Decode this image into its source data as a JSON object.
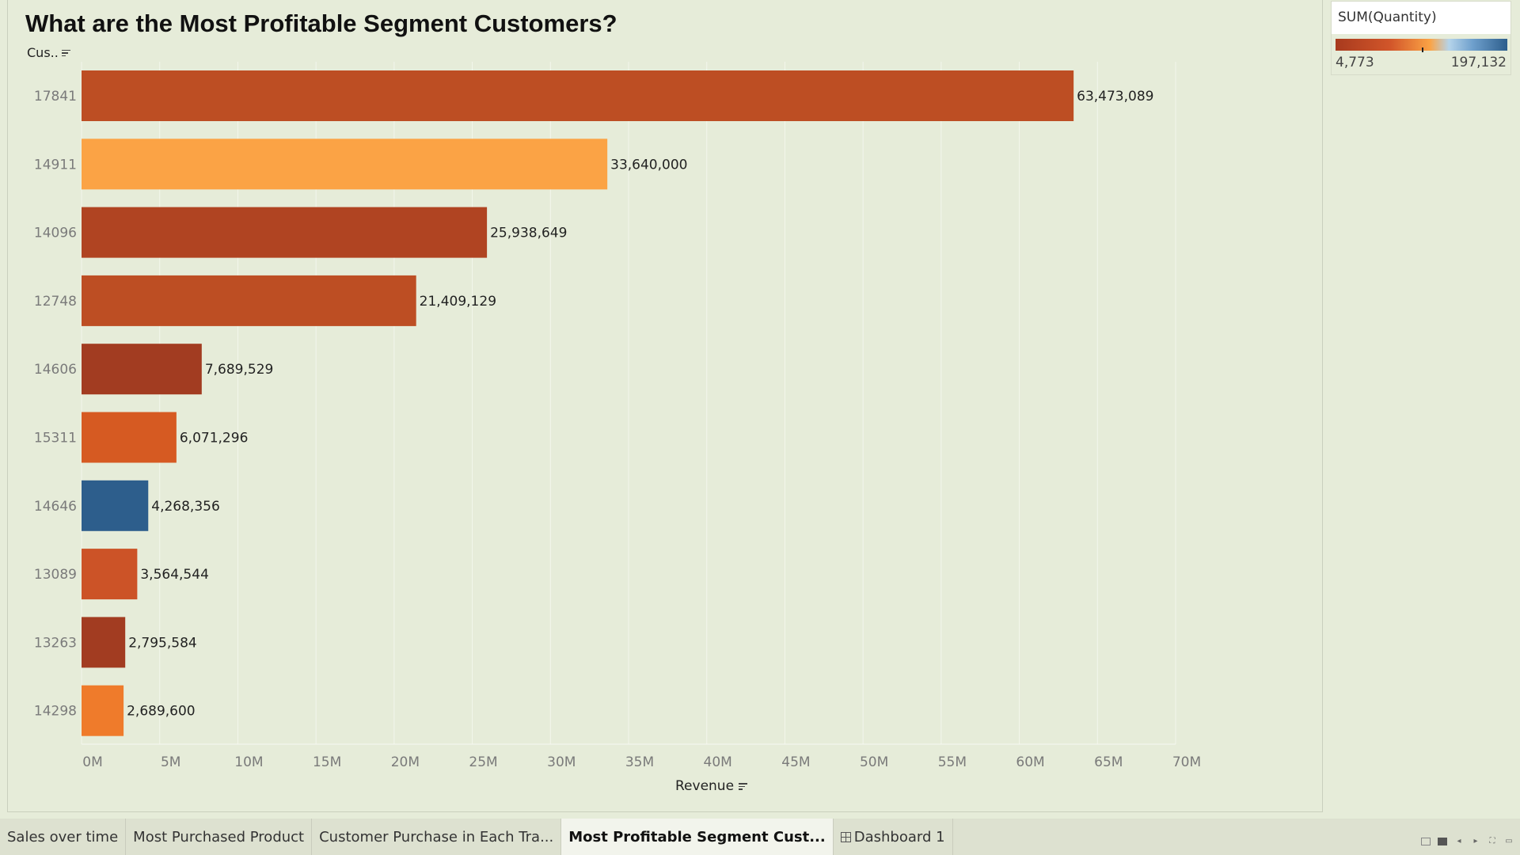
{
  "title": "What are the Most Profitable Segment Customers?",
  "row_header": "Cus..",
  "legend": {
    "title": "SUM(Quantity)",
    "min": "4,773",
    "max": "197,132",
    "colors": [
      "#a83a1e",
      "#d2562a",
      "#fba345",
      "#b5d4ea",
      "#6e9fcc",
      "#2d5e8c"
    ]
  },
  "chart_data": {
    "type": "bar",
    "orientation": "horizontal",
    "xlabel": "Revenue",
    "ylabel": "Cus..",
    "xlim": [
      0,
      70000000
    ],
    "x_ticks": [
      "0M",
      "5M",
      "10M",
      "15M",
      "20M",
      "25M",
      "30M",
      "35M",
      "40M",
      "45M",
      "50M",
      "55M",
      "60M",
      "65M",
      "70M"
    ],
    "grid": true,
    "legend_position": "top-right",
    "categories": [
      "17841",
      "14911",
      "14096",
      "12748",
      "14606",
      "15311",
      "14646",
      "13089",
      "13263",
      "14298"
    ],
    "values": [
      63473089,
      33640000,
      25938649,
      21409129,
      7689529,
      6071296,
      4268356,
      3564544,
      2795584,
      2689600
    ],
    "labels": [
      "63,473,089",
      "33,640,000",
      "25,938,649",
      "21,409,129",
      "7,689,529",
      "6,071,296",
      "4,268,356",
      "3,564,544",
      "2,795,584",
      "2,689,600"
    ],
    "colors": [
      "#bd4e23",
      "#fba345",
      "#b04422",
      "#bd4e23",
      "#a23c21",
      "#d65a22",
      "#2d5e8c",
      "#cc5327",
      "#a23c21",
      "#ef7b2b"
    ]
  },
  "tabs": [
    {
      "label": "Sales over time",
      "active": false
    },
    {
      "label": "Most Purchased Product",
      "active": false
    },
    {
      "label": "Customer Purchase in Each Tra...",
      "active": false
    },
    {
      "label": "Most Profitable Segment Cust...",
      "active": true
    },
    {
      "label": "Dashboard 1",
      "active": false,
      "icon": "dashboard-grid-icon"
    }
  ],
  "nav_icons": [
    "filmstrip-icon",
    "single-sheet-icon",
    "previous-arrow-icon",
    "next-arrow-icon",
    "fit-window-icon",
    "presentation-icon"
  ]
}
